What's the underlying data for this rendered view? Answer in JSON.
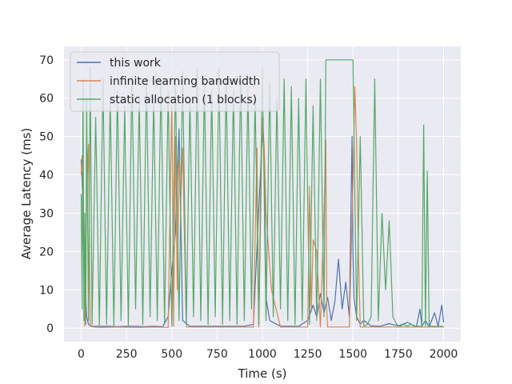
{
  "chart_data": {
    "type": "line",
    "title": "",
    "xlabel": "Time (s)",
    "ylabel": "Average Latency (ms)",
    "xlim": [
      -95,
      2095
    ],
    "ylim": [
      -3.5,
      73.5
    ],
    "xticks": [
      0,
      250,
      500,
      750,
      1000,
      1250,
      1500,
      1750,
      2000
    ],
    "xtick_labels": [
      "0",
      "250",
      "500",
      "750",
      "1000",
      "1250",
      "1500",
      "1750",
      "2000"
    ],
    "yticks": [
      0,
      10,
      20,
      30,
      40,
      50,
      60,
      70
    ],
    "ytick_labels": [
      "0",
      "10",
      "20",
      "30",
      "40",
      "50",
      "60",
      "70"
    ],
    "grid": true,
    "background": "#eaeaf2",
    "legend_position": "top-left",
    "series": [
      {
        "name": "this work",
        "color": "#4c72b0",
        "x": [
          0,
          5,
          10,
          15,
          20,
          25,
          30,
          40,
          60,
          100,
          150,
          200,
          250,
          300,
          350,
          400,
          450,
          480,
          500,
          520,
          540,
          560,
          600,
          700,
          800,
          900,
          950,
          1000,
          1010,
          1020,
          1040,
          1100,
          1200,
          1250,
          1280,
          1300,
          1320,
          1340,
          1360,
          1380,
          1400,
          1420,
          1440,
          1460,
          1480,
          1495,
          1500,
          1505,
          1520,
          1540,
          1560,
          1600,
          1650,
          1700,
          1750,
          1800,
          1850,
          1870,
          1880,
          1900,
          1920,
          1950,
          1970,
          1990,
          2000
        ],
        "y": [
          44,
          38,
          31,
          15,
          22,
          8,
          3,
          1,
          0.5,
          0.5,
          0.5,
          0.4,
          0.5,
          0.5,
          0.4,
          0.5,
          0.4,
          3,
          15,
          25,
          52,
          2,
          0.5,
          0.5,
          0.5,
          0.5,
          1,
          51,
          45,
          8,
          2,
          0.5,
          0.5,
          2,
          6,
          3,
          9,
          4,
          8,
          2,
          7,
          18,
          5,
          12,
          3,
          50,
          20,
          8,
          3,
          1,
          2,
          0.6,
          0.5,
          1.2,
          0.6,
          1.5,
          0.4,
          5,
          0.5,
          2,
          0.3,
          4,
          0.5,
          6,
          1.5
        ]
      },
      {
        "name": "infinite learning bandwidth",
        "color": "#dd8452",
        "x": [
          0,
          5,
          10,
          20,
          30,
          40,
          50,
          70,
          100,
          200,
          300,
          400,
          480,
          500,
          510,
          520,
          530,
          540,
          550,
          560,
          580,
          600,
          700,
          800,
          900,
          950,
          970,
          980,
          1000,
          1010,
          1020,
          1050,
          1100,
          1200,
          1250,
          1260,
          1270,
          1280,
          1300,
          1320,
          1340,
          1350,
          1355,
          1360,
          1400,
          1450,
          1480,
          1500,
          1510,
          1520,
          1530,
          1540,
          1560,
          1700,
          1800,
          1900,
          2000
        ],
        "y": [
          40,
          45,
          30,
          0.5,
          35,
          48,
          0.5,
          0.3,
          0.2,
          0.3,
          0.2,
          0.3,
          0.2,
          59,
          0.5,
          50,
          10,
          44,
          35,
          47,
          0.3,
          0.3,
          0.3,
          0.3,
          0.3,
          0.3,
          47,
          0.3,
          55,
          47,
          30,
          10,
          0.3,
          0.3,
          0.3,
          37,
          5,
          23,
          20,
          0.3,
          30,
          49,
          5,
          0.3,
          0.3,
          0.3,
          0.3,
          38,
          63,
          48,
          20,
          0.3,
          0.3,
          0.3,
          0.3,
          0.3,
          0.3
        ]
      },
      {
        "name": "static allocation (1 blocks)",
        "color": "#55a868",
        "x": [
          0,
          5,
          10,
          15,
          20,
          25,
          30,
          40,
          50,
          60,
          80,
          100,
          120,
          140,
          160,
          180,
          200,
          220,
          240,
          260,
          280,
          300,
          320,
          340,
          360,
          380,
          400,
          420,
          440,
          460,
          480,
          500,
          520,
          540,
          560,
          580,
          600,
          620,
          640,
          660,
          680,
          700,
          720,
          740,
          760,
          780,
          800,
          820,
          840,
          860,
          880,
          900,
          920,
          940,
          960,
          980,
          1000,
          1020,
          1040,
          1060,
          1080,
          1100,
          1120,
          1140,
          1160,
          1180,
          1200,
          1220,
          1240,
          1260,
          1280,
          1300,
          1320,
          1340,
          1350,
          1360,
          1380,
          1400,
          1420,
          1440,
          1460,
          1480,
          1500,
          1520,
          1540,
          1560,
          1580,
          1600,
          1620,
          1640,
          1660,
          1680,
          1700,
          1720,
          1740,
          1760,
          1780,
          1800,
          1820,
          1840,
          1860,
          1880,
          1890,
          1900,
          1910,
          1920,
          1940,
          1960,
          1980,
          2000
        ],
        "y": [
          35,
          5,
          65,
          2,
          30,
          1,
          60,
          2,
          68,
          1,
          55,
          0.5,
          65,
          1,
          60,
          0.5,
          62,
          2,
          58,
          0.5,
          66,
          5,
          60,
          1,
          65,
          3,
          60,
          2,
          65,
          1,
          62,
          0.5,
          65,
          2,
          67,
          1,
          60,
          3,
          68,
          2,
          64,
          1,
          62,
          3,
          68,
          1,
          65,
          2,
          62,
          1,
          66,
          2,
          63,
          5,
          60,
          1,
          68,
          2,
          64,
          3,
          60,
          5,
          65,
          2,
          63,
          1,
          60,
          2,
          65,
          1,
          58,
          2,
          65,
          3,
          70,
          70,
          70,
          70,
          70,
          70,
          70,
          70,
          70,
          2,
          50,
          0.5,
          1,
          3,
          65,
          2,
          30,
          10,
          28,
          3,
          1,
          0.5,
          1,
          0.5,
          1,
          0.5,
          0.5,
          0.5,
          53,
          0.5,
          41,
          0.5,
          0.5,
          0.5,
          0.5,
          0.5
        ]
      }
    ]
  }
}
